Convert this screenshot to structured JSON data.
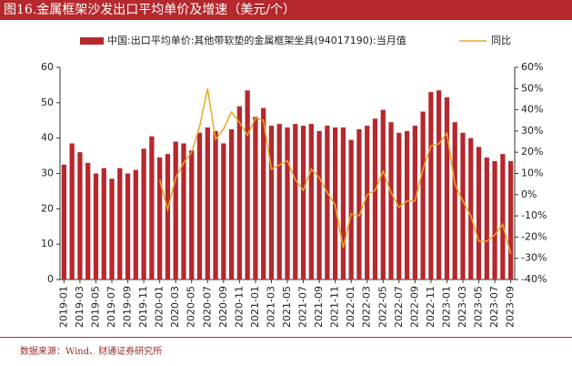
{
  "header": {
    "title": "图16.金属框架沙发出口平均单价及增速（美元/个）"
  },
  "chart_data": {
    "type": "bar",
    "categories": [
      "2019-01",
      null,
      "2019-03",
      null,
      "2019-05",
      null,
      "2019-07",
      null,
      "2019-09",
      null,
      "2019-11",
      null,
      "2020-01",
      null,
      "2020-03",
      null,
      "2020-05",
      null,
      "2020-07",
      null,
      "2020-09",
      null,
      "2020-11",
      null,
      "2021-01",
      null,
      "2021-03",
      null,
      "2021-05",
      null,
      "2021-07",
      null,
      "2021-09",
      null,
      "2021-11",
      null,
      "2022-01",
      null,
      "2022-03",
      null,
      "2022-05",
      null,
      "2022-07",
      null,
      "2022-09",
      null,
      "2022-11",
      null,
      "2023-01",
      null,
      "2023-03",
      null,
      "2023-05",
      null,
      "2023-07",
      null,
      "2023-09"
    ],
    "series": [
      {
        "name": "中国:出口平均单价:其他带软垫的金属框架坐具(94017190):当月值",
        "color": "#b5282d",
        "values": [
          32.5,
          38.5,
          36,
          33,
          30,
          31.5,
          28.5,
          31.5,
          30,
          31,
          37,
          40.5,
          34.5,
          35.5,
          39,
          38.5,
          36.5,
          41.5,
          43,
          42,
          38.5,
          42.5,
          49,
          53.5,
          46,
          48.5,
          43.5,
          44,
          43,
          44,
          43.5,
          44,
          42,
          43.5,
          43,
          43,
          39.5,
          42.5,
          43.5,
          45.5,
          48,
          44.5,
          41.5,
          42,
          43.5,
          47.5,
          53,
          53.5,
          51.5,
          44.5,
          41.5,
          40,
          37.5,
          34.5,
          33.5,
          35.5,
          33.5
        ]
      },
      {
        "name": "同比",
        "color": "#e8a628",
        "type": "line",
        "axis": "y2",
        "values": [
          null,
          null,
          null,
          null,
          null,
          null,
          null,
          null,
          null,
          null,
          null,
          null,
          7,
          -7,
          8,
          15,
          20,
          32,
          50,
          26,
          31,
          39,
          34,
          28,
          36,
          35,
          12,
          14,
          16,
          7,
          2,
          12,
          8,
          1,
          -5,
          -25,
          -9,
          -10,
          0,
          2,
          11,
          1,
          -6,
          -3,
          -3,
          12,
          23,
          24,
          29,
          5,
          -3,
          -10,
          -22,
          -22,
          -19,
          -14,
          -28
        ]
      }
    ],
    "ylim": [
      0,
      60
    ],
    "yticks": [
      0,
      10,
      20,
      30,
      40,
      50,
      60
    ],
    "y2lim": [
      -40,
      60
    ],
    "y2ticks": [
      {
        "value": -40,
        "label": "-40%"
      },
      {
        "value": -30,
        "label": "-30%"
      },
      {
        "value": -20,
        "label": "-20%"
      },
      {
        "value": -10,
        "label": "-10%"
      },
      {
        "value": 0,
        "label": "0%"
      },
      {
        "value": 10,
        "label": "10%"
      },
      {
        "value": 20,
        "label": "20%"
      },
      {
        "value": 30,
        "label": "30%"
      },
      {
        "value": 40,
        "label": "40%"
      },
      {
        "value": 50,
        "label": "50%"
      },
      {
        "value": 60,
        "label": "60%"
      }
    ],
    "legend": "top"
  },
  "footer": {
    "source": "数据来源：Wind、财通证券研究所"
  }
}
